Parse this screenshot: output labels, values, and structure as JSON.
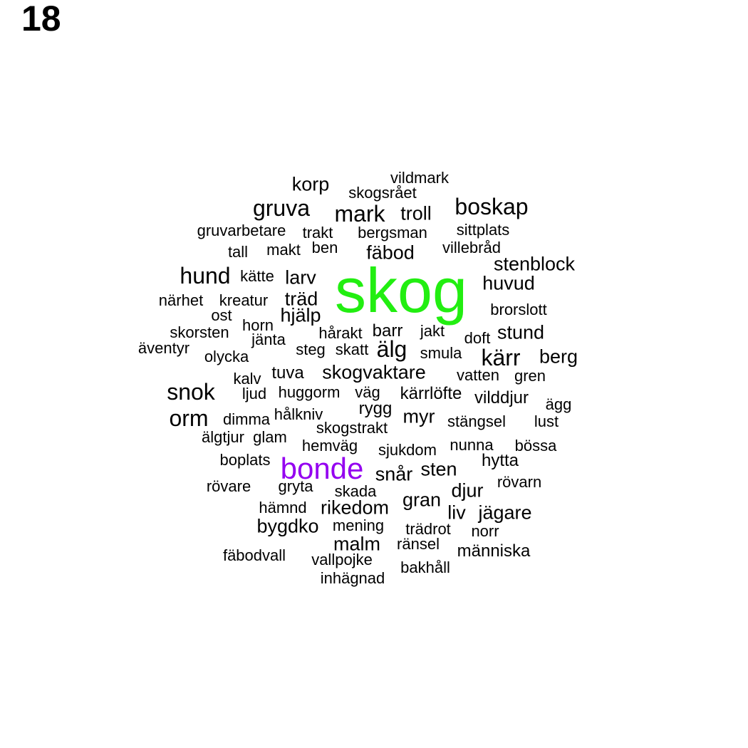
{
  "panel_label": "18",
  "colors": {
    "highlight_primary": "#22ee11",
    "highlight_secondary": "#9400f0",
    "default": "#000000"
  },
  "words": [
    {
      "text": "skog",
      "size": "w-huge",
      "color": "#22ee11"
    },
    {
      "text": "bonde",
      "size": "w-big",
      "color": "#9400f0"
    },
    {
      "text": "gruva",
      "size": "w-l"
    },
    {
      "text": "mark",
      "size": "w-l"
    },
    {
      "text": "boskap",
      "size": "w-l"
    },
    {
      "text": "hund",
      "size": "w-l"
    },
    {
      "text": "älg",
      "size": "w-l"
    },
    {
      "text": "kärr",
      "size": "w-l"
    },
    {
      "text": "snok",
      "size": "w-l"
    },
    {
      "text": "orm",
      "size": "w-l"
    },
    {
      "text": "korp",
      "size": "w-m"
    },
    {
      "text": "troll",
      "size": "w-m"
    },
    {
      "text": "fäbod",
      "size": "w-m"
    },
    {
      "text": "stenblock",
      "size": "w-m"
    },
    {
      "text": "huvud",
      "size": "w-m"
    },
    {
      "text": "larv",
      "size": "w-m"
    },
    {
      "text": "träd",
      "size": "w-m"
    },
    {
      "text": "hjälp",
      "size": "w-m"
    },
    {
      "text": "stund",
      "size": "w-m"
    },
    {
      "text": "berg",
      "size": "w-m"
    },
    {
      "text": "skogvaktare",
      "size": "w-m"
    },
    {
      "text": "myr",
      "size": "w-m"
    },
    {
      "text": "snår",
      "size": "w-m"
    },
    {
      "text": "sten",
      "size": "w-m"
    },
    {
      "text": "djur",
      "size": "w-m"
    },
    {
      "text": "gran",
      "size": "w-m"
    },
    {
      "text": "rikedom",
      "size": "w-m"
    },
    {
      "text": "liv",
      "size": "w-m"
    },
    {
      "text": "jägare",
      "size": "w-m"
    },
    {
      "text": "malm",
      "size": "w-m"
    },
    {
      "text": "bygdko",
      "size": "w-m"
    },
    {
      "text": "hytta",
      "size": "w-s"
    },
    {
      "text": "vilddjur",
      "size": "w-s"
    },
    {
      "text": "kärrlöfte",
      "size": "w-s"
    },
    {
      "text": "tuva",
      "size": "w-s"
    },
    {
      "text": "barr",
      "size": "w-s"
    },
    {
      "text": "rygg",
      "size": "w-s"
    },
    {
      "text": "människa",
      "size": "w-s"
    },
    {
      "text": "vildmark",
      "size": "w-xs"
    },
    {
      "text": "skogsrået",
      "size": "w-xs"
    },
    {
      "text": "gruvarbetare",
      "size": "w-xs"
    },
    {
      "text": "trakt",
      "size": "w-xs"
    },
    {
      "text": "bergsman",
      "size": "w-xs"
    },
    {
      "text": "sittplats",
      "size": "w-xs"
    },
    {
      "text": "tall",
      "size": "w-xs"
    },
    {
      "text": "makt",
      "size": "w-xs"
    },
    {
      "text": "ben",
      "size": "w-xs"
    },
    {
      "text": "villebråd",
      "size": "w-xs"
    },
    {
      "text": "kätte",
      "size": "w-xs"
    },
    {
      "text": "närhet",
      "size": "w-xs"
    },
    {
      "text": "kreatur",
      "size": "w-xs"
    },
    {
      "text": "brorslott",
      "size": "w-xs"
    },
    {
      "text": "ost",
      "size": "w-xs"
    },
    {
      "text": "horn",
      "size": "w-xs"
    },
    {
      "text": "skorsten",
      "size": "w-xs"
    },
    {
      "text": "jänta",
      "size": "w-xs"
    },
    {
      "text": "hårakt",
      "size": "w-xs"
    },
    {
      "text": "jakt",
      "size": "w-xs"
    },
    {
      "text": "doft",
      "size": "w-xs"
    },
    {
      "text": "äventyr",
      "size": "w-xs"
    },
    {
      "text": "olycka",
      "size": "w-xs"
    },
    {
      "text": "steg",
      "size": "w-xs"
    },
    {
      "text": "skatt",
      "size": "w-xs"
    },
    {
      "text": "smula",
      "size": "w-xs"
    },
    {
      "text": "kalv",
      "size": "w-xs"
    },
    {
      "text": "vatten",
      "size": "w-xs"
    },
    {
      "text": "gren",
      "size": "w-xs"
    },
    {
      "text": "ljud",
      "size": "w-xs"
    },
    {
      "text": "huggorm",
      "size": "w-xs"
    },
    {
      "text": "väg",
      "size": "w-xs"
    },
    {
      "text": "ägg",
      "size": "w-xs"
    },
    {
      "text": "dimma",
      "size": "w-xs"
    },
    {
      "text": "hålkniv",
      "size": "w-xs"
    },
    {
      "text": "stängsel",
      "size": "w-xs"
    },
    {
      "text": "lust",
      "size": "w-xs"
    },
    {
      "text": "skogstrakt",
      "size": "w-xs"
    },
    {
      "text": "älgtjur",
      "size": "w-xs"
    },
    {
      "text": "glam",
      "size": "w-xs"
    },
    {
      "text": "hemväg",
      "size": "w-xs"
    },
    {
      "text": "sjukdom",
      "size": "w-xs"
    },
    {
      "text": "nunna",
      "size": "w-xs"
    },
    {
      "text": "bössa",
      "size": "w-xs"
    },
    {
      "text": "boplats",
      "size": "w-xs"
    },
    {
      "text": "rövarn",
      "size": "w-xs"
    },
    {
      "text": "rövare",
      "size": "w-xs"
    },
    {
      "text": "gryta",
      "size": "w-xs"
    },
    {
      "text": "skada",
      "size": "w-xs"
    },
    {
      "text": "hämnd",
      "size": "w-xs"
    },
    {
      "text": "mening",
      "size": "w-xs"
    },
    {
      "text": "trädrot",
      "size": "w-xs"
    },
    {
      "text": "norr",
      "size": "w-xs"
    },
    {
      "text": "ränsel",
      "size": "w-xs"
    },
    {
      "text": "fäbodvall",
      "size": "w-xs"
    },
    {
      "text": "vallpojke",
      "size": "w-xs"
    },
    {
      "text": "bakhåll",
      "size": "w-xs"
    },
    {
      "text": "inhägnad",
      "size": "w-xs"
    }
  ]
}
